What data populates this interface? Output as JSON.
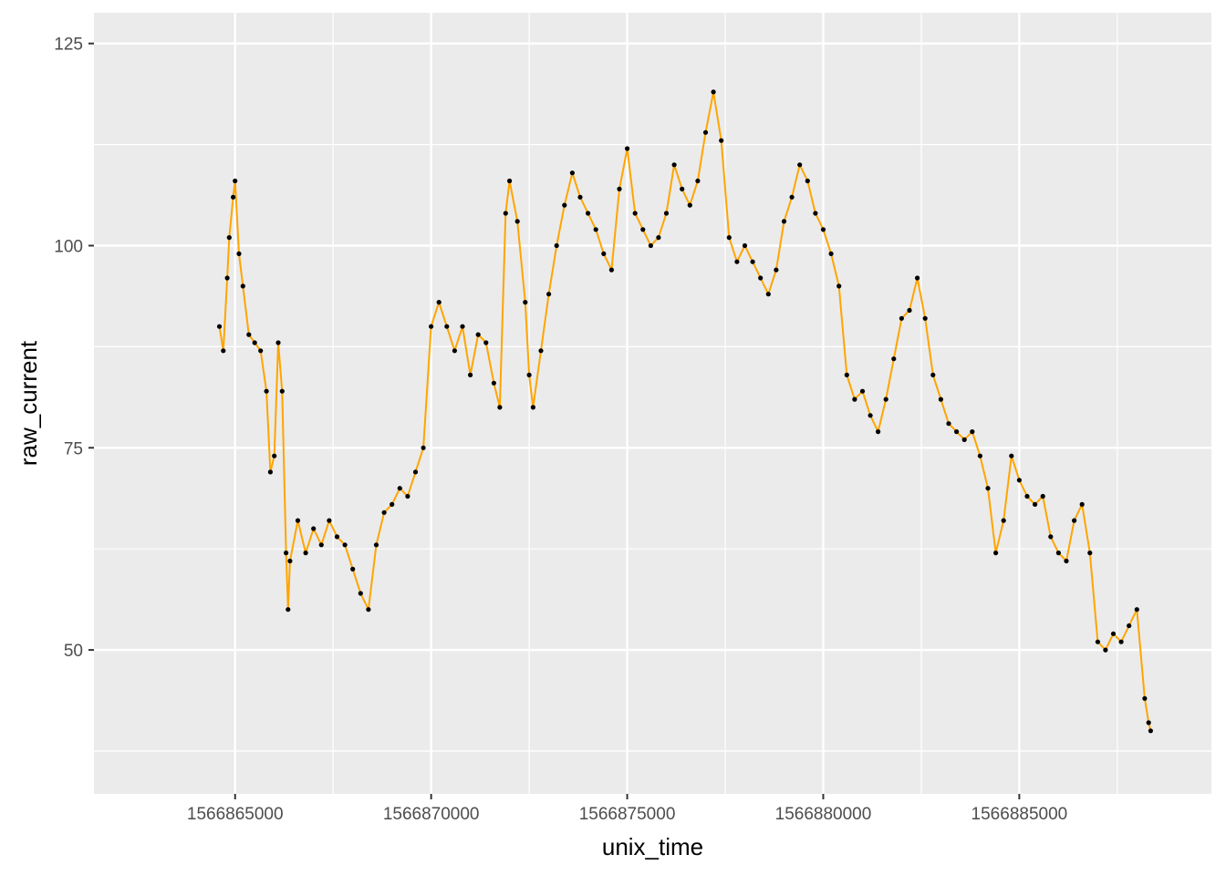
{
  "chart_data": {
    "type": "line",
    "title": "",
    "xlabel": "unix_time",
    "ylabel": "raw_current",
    "xlim": [
      1566861400,
      1566889900
    ],
    "ylim": [
      32.2,
      128.8
    ],
    "x_ticks": [
      {
        "value": 1566865000,
        "label": "1566865000"
      },
      {
        "value": 1566870000,
        "label": "1566870000"
      },
      {
        "value": 1566875000,
        "label": "1566875000"
      },
      {
        "value": 1566880000,
        "label": "1566880000"
      },
      {
        "value": 1566885000,
        "label": "1566885000"
      }
    ],
    "x_minor_ticks": [
      1566867500,
      1566872500,
      1566877500,
      1566882500,
      1566887500
    ],
    "y_ticks": [
      {
        "value": 50,
        "label": "50"
      },
      {
        "value": 75,
        "label": "75"
      },
      {
        "value": 100,
        "label": "100"
      },
      {
        "value": 125,
        "label": "125"
      }
    ],
    "y_minor_ticks": [
      37.5,
      62.5,
      87.5,
      112.5
    ],
    "grid": true,
    "legend": "none",
    "colors": {
      "panel_background": "#EBEBEB",
      "grid": "#FFFFFF",
      "line": "#FFA500",
      "points": "#000000"
    },
    "series": [
      {
        "points": [
          [
            1566864600,
            90
          ],
          [
            1566864700,
            87
          ],
          [
            1566864800,
            96
          ],
          [
            1566864850,
            101
          ],
          [
            1566864950,
            106
          ],
          [
            1566865000,
            108
          ],
          [
            1566865100,
            99
          ],
          [
            1566865200,
            95
          ],
          [
            1566865350,
            89
          ],
          [
            1566865500,
            88
          ],
          [
            1566865650,
            87
          ],
          [
            1566865800,
            82
          ],
          [
            1566865900,
            72
          ],
          [
            1566866000,
            74
          ],
          [
            1566866100,
            88
          ],
          [
            1566866200,
            82
          ],
          [
            1566866300,
            62
          ],
          [
            1566866350,
            55
          ],
          [
            1566866400,
            61
          ],
          [
            1566866600,
            66
          ],
          [
            1566866800,
            62
          ],
          [
            1566867000,
            65
          ],
          [
            1566867200,
            63
          ],
          [
            1566867400,
            66
          ],
          [
            1566867600,
            64
          ],
          [
            1566867800,
            63
          ],
          [
            1566868000,
            60
          ],
          [
            1566868200,
            57
          ],
          [
            1566868400,
            55
          ],
          [
            1566868600,
            63
          ],
          [
            1566868800,
            67
          ],
          [
            1566869000,
            68
          ],
          [
            1566869200,
            70
          ],
          [
            1566869400,
            69
          ],
          [
            1566869600,
            72
          ],
          [
            1566869800,
            75
          ],
          [
            1566870000,
            90
          ],
          [
            1566870200,
            93
          ],
          [
            1566870400,
            90
          ],
          [
            1566870600,
            87
          ],
          [
            1566870800,
            90
          ],
          [
            1566871000,
            84
          ],
          [
            1566871200,
            89
          ],
          [
            1566871400,
            88
          ],
          [
            1566871600,
            83
          ],
          [
            1566871750,
            80
          ],
          [
            1566871900,
            104
          ],
          [
            1566872000,
            108
          ],
          [
            1566872200,
            103
          ],
          [
            1566872400,
            93
          ],
          [
            1566872500,
            84
          ],
          [
            1566872600,
            80
          ],
          [
            1566872800,
            87
          ],
          [
            1566873000,
            94
          ],
          [
            1566873200,
            100
          ],
          [
            1566873400,
            105
          ],
          [
            1566873600,
            109
          ],
          [
            1566873800,
            106
          ],
          [
            1566874000,
            104
          ],
          [
            1566874200,
            102
          ],
          [
            1566874400,
            99
          ],
          [
            1566874600,
            97
          ],
          [
            1566874800,
            107
          ],
          [
            1566875000,
            112
          ],
          [
            1566875200,
            104
          ],
          [
            1566875400,
            102
          ],
          [
            1566875600,
            100
          ],
          [
            1566875800,
            101
          ],
          [
            1566876000,
            104
          ],
          [
            1566876200,
            110
          ],
          [
            1566876400,
            107
          ],
          [
            1566876600,
            105
          ],
          [
            1566876800,
            108
          ],
          [
            1566877000,
            114
          ],
          [
            1566877200,
            119
          ],
          [
            1566877400,
            113
          ],
          [
            1566877600,
            101
          ],
          [
            1566877800,
            98
          ],
          [
            1566878000,
            100
          ],
          [
            1566878200,
            98
          ],
          [
            1566878400,
            96
          ],
          [
            1566878600,
            94
          ],
          [
            1566878800,
            97
          ],
          [
            1566879000,
            103
          ],
          [
            1566879200,
            106
          ],
          [
            1566879400,
            110
          ],
          [
            1566879600,
            108
          ],
          [
            1566879800,
            104
          ],
          [
            1566880000,
            102
          ],
          [
            1566880200,
            99
          ],
          [
            1566880400,
            95
          ],
          [
            1566880600,
            84
          ],
          [
            1566880800,
            81
          ],
          [
            1566881000,
            82
          ],
          [
            1566881200,
            79
          ],
          [
            1566881400,
            77
          ],
          [
            1566881600,
            81
          ],
          [
            1566881800,
            86
          ],
          [
            1566882000,
            91
          ],
          [
            1566882200,
            92
          ],
          [
            1566882400,
            96
          ],
          [
            1566882600,
            91
          ],
          [
            1566882800,
            84
          ],
          [
            1566883000,
            81
          ],
          [
            1566883200,
            78
          ],
          [
            1566883400,
            77
          ],
          [
            1566883600,
            76
          ],
          [
            1566883800,
            77
          ],
          [
            1566884000,
            74
          ],
          [
            1566884200,
            70
          ],
          [
            1566884400,
            62
          ],
          [
            1566884600,
            66
          ],
          [
            1566884800,
            74
          ],
          [
            1566885000,
            71
          ],
          [
            1566885200,
            69
          ],
          [
            1566885400,
            68
          ],
          [
            1566885600,
            69
          ],
          [
            1566885800,
            64
          ],
          [
            1566886000,
            62
          ],
          [
            1566886200,
            61
          ],
          [
            1566886400,
            66
          ],
          [
            1566886600,
            68
          ],
          [
            1566886800,
            62
          ],
          [
            1566887000,
            51
          ],
          [
            1566887200,
            50
          ],
          [
            1566887400,
            52
          ],
          [
            1566887600,
            51
          ],
          [
            1566887800,
            53
          ],
          [
            1566888000,
            55
          ],
          [
            1566888200,
            44
          ],
          [
            1566888300,
            41
          ],
          [
            1566888350,
            40
          ]
        ]
      }
    ]
  }
}
